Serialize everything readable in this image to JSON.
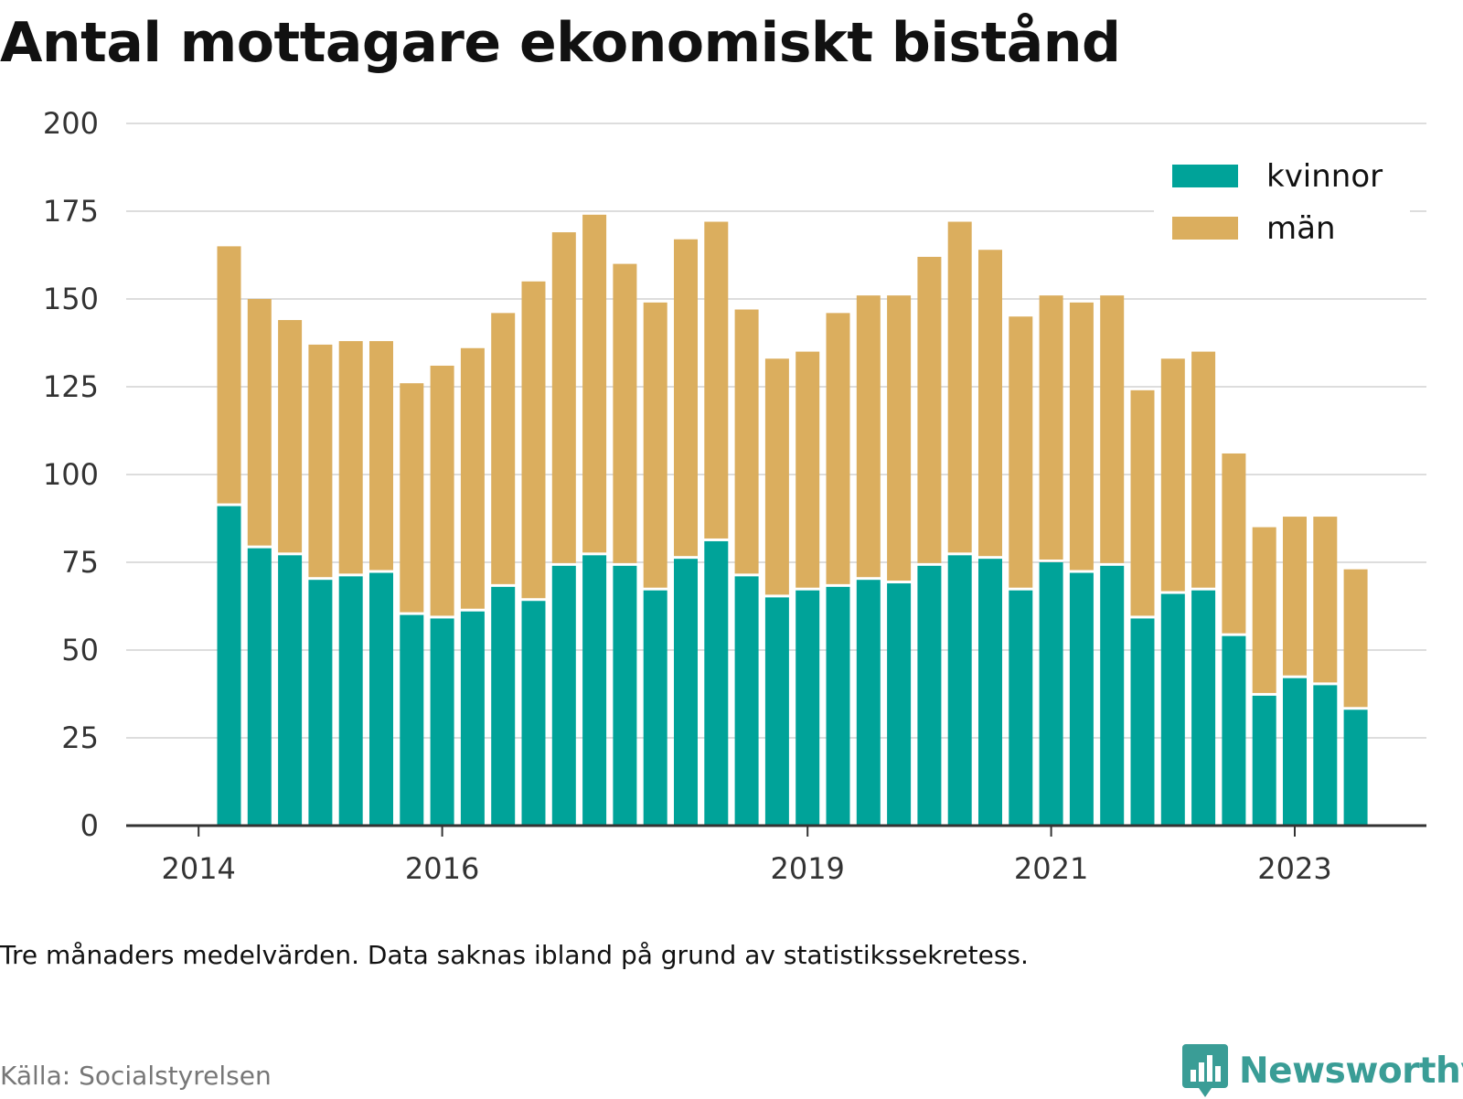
{
  "title": "Antal mottagare ekonomiskt bistånd",
  "note": "Tre månaders medelvärden. Data saknas ibland på grund av statistikssekretess.",
  "source": "Källa: Socialstyrelsen",
  "brand": {
    "name": "Newsworthy",
    "icon": "bar-chart-speech-bubble-icon"
  },
  "colors": {
    "kvinnor": "#00a399",
    "man": "#dbae5e",
    "grid": "#dddddd",
    "axis": "#333333"
  },
  "chart_data": {
    "type": "bar",
    "stacked": true,
    "ylim": [
      0,
      200
    ],
    "yticks": [
      0,
      25,
      50,
      75,
      100,
      125,
      150,
      175,
      200
    ],
    "xticks": [
      {
        "label": "2014",
        "slot": -1
      },
      {
        "label": "2016",
        "slot": 7
      },
      {
        "label": "2019",
        "slot": 19
      },
      {
        "label": "2021",
        "slot": 27
      },
      {
        "label": "2023",
        "slot": 35
      }
    ],
    "grid": true,
    "legend_position": "top-right",
    "series": [
      {
        "name": "kvinnor",
        "color": "#00a399",
        "values": [
          91,
          79,
          77,
          70,
          71,
          72,
          60,
          59,
          61,
          68,
          64,
          74,
          77,
          74,
          67,
          76,
          81,
          71,
          65,
          67,
          68,
          70,
          69,
          74,
          77,
          76,
          67,
          75,
          72,
          74,
          59,
          66,
          67,
          54,
          37,
          42,
          40,
          33
        ]
      },
      {
        "name": "män",
        "color": "#dbae5e",
        "values": [
          74,
          71,
          67,
          67,
          67,
          66,
          66,
          72,
          75,
          78,
          91,
          95,
          97,
          86,
          82,
          91,
          91,
          76,
          68,
          68,
          78,
          81,
          82,
          88,
          95,
          88,
          78,
          76,
          77,
          77,
          65,
          67,
          68,
          52,
          48,
          46,
          48,
          40
        ]
      }
    ]
  }
}
